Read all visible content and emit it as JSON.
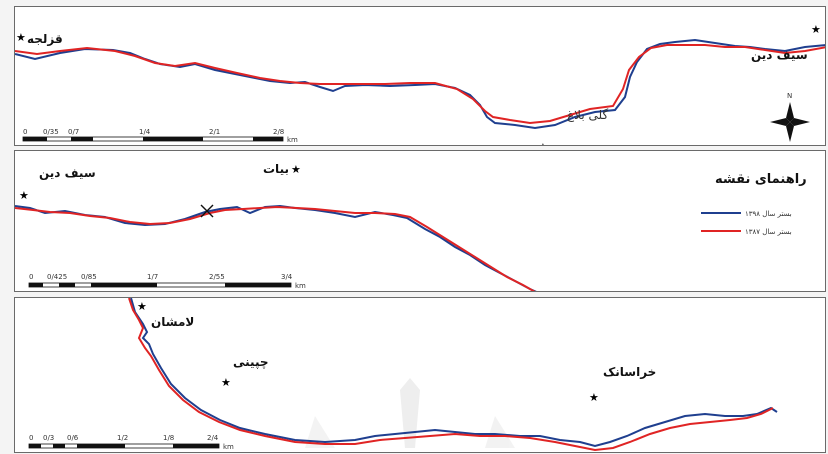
{
  "colors": {
    "line_1398": "#1f3f8f",
    "line_1387": "#e02424",
    "frame": "#6a6a6a",
    "text": "#111111"
  },
  "panel1": {
    "places": {
      "qezelja": "قزلجه",
      "seif_din": "سیف دین",
      "goli_bolagh": "گلی بلاغ"
    },
    "scale": {
      "ticks": [
        "0",
        "0/35",
        "0/7",
        "1/4",
        "2/1",
        "2/8"
      ],
      "unit": "km"
    },
    "north_label": "N"
  },
  "panel2": {
    "places": {
      "seif_din": "سیف دین",
      "biat": "بیات"
    },
    "legend": {
      "title": "راهنمای نقشه",
      "items": [
        {
          "label": "بستر سال ۱۳۹۸",
          "color": "#1f3f8f"
        },
        {
          "label": "بستر سال ۱۳۸۷",
          "color": "#e02424"
        }
      ]
    },
    "scale": {
      "ticks": [
        "0",
        "0/425",
        "0/85",
        "1/7",
        "2/55",
        "3/4"
      ],
      "unit": "km"
    }
  },
  "panel3": {
    "places": {
      "lamshan": "لامشان",
      "chipini": "چپینی",
      "khorasanak": "خراسانک"
    },
    "scale": {
      "ticks": [
        "0",
        "0/3",
        "0/6",
        "1/2",
        "1/8",
        "2/4"
      ],
      "unit": "km"
    }
  }
}
